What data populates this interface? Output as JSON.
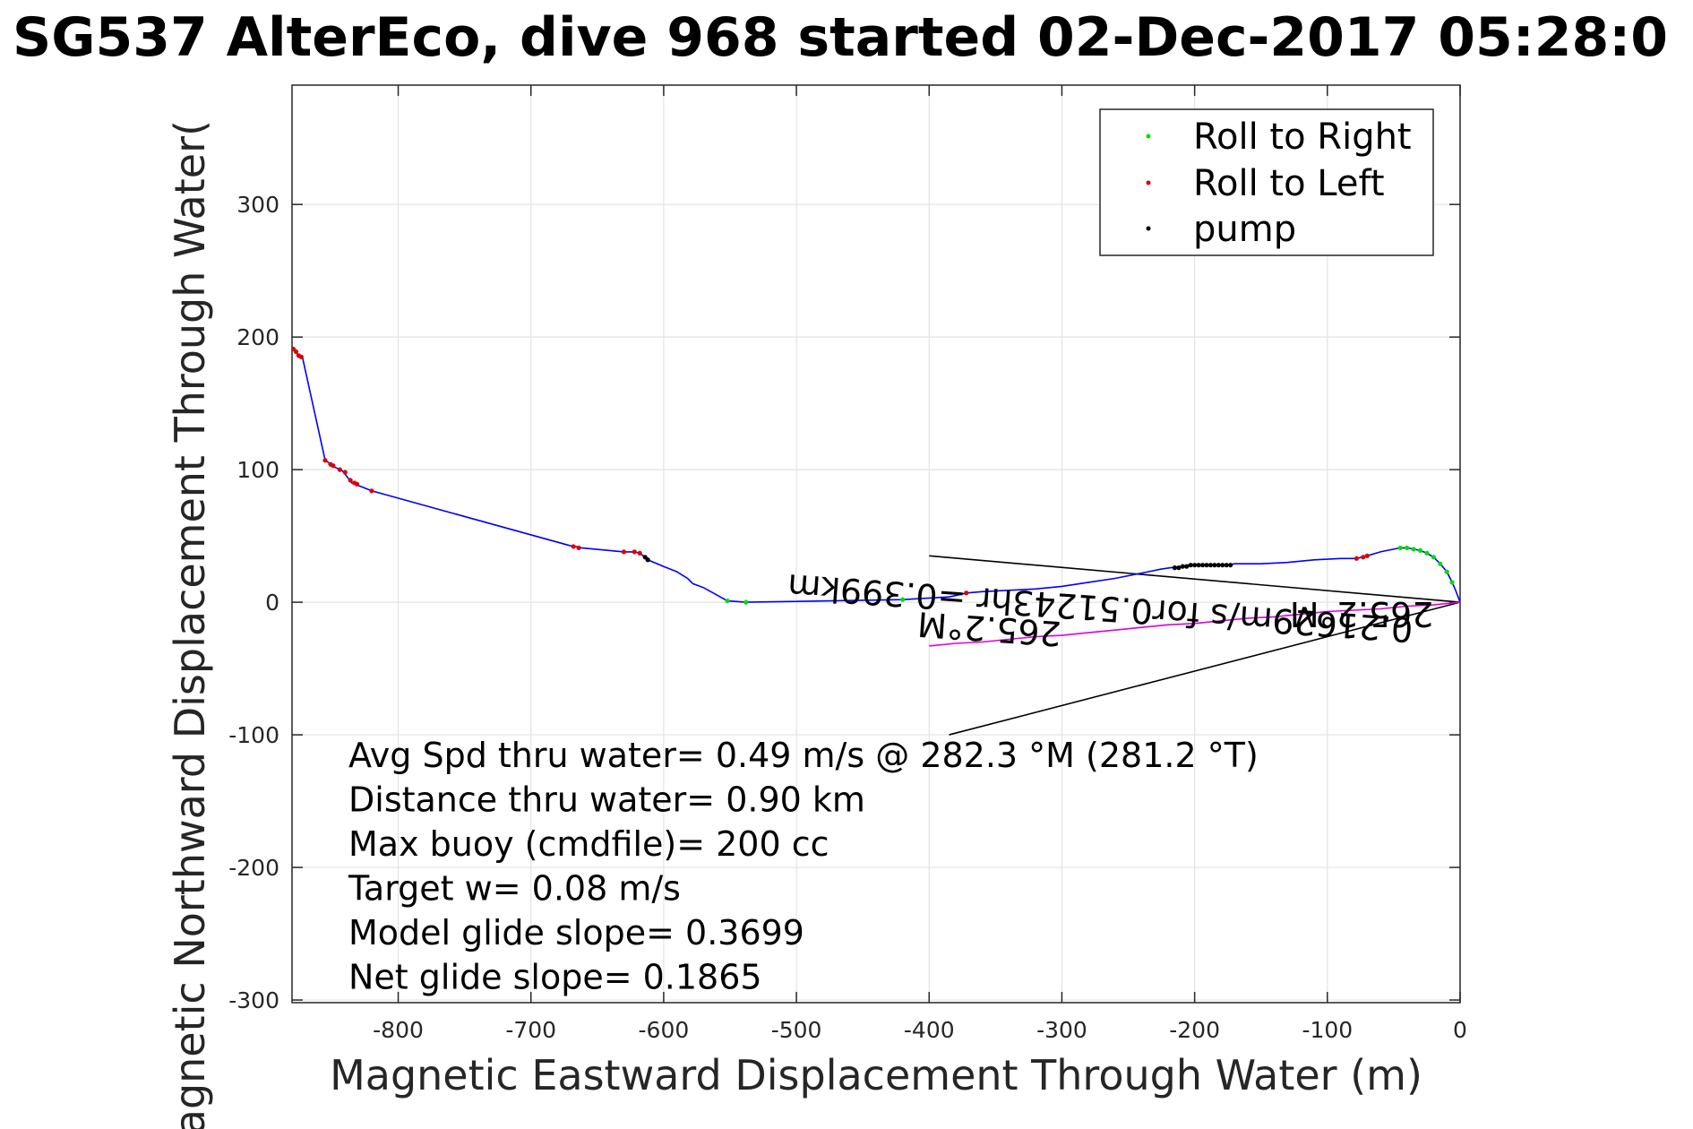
{
  "title": "SG537 AlterEco, dive 968 started 02-Dec-2017 05:28:0",
  "chart_data": {
    "type": "line",
    "xlabel": "Magnetic Eastward Displacement Through Water (m)",
    "ylabel": "Magnetic Northward Displacement Through Water(",
    "xlim": [
      -880,
      0
    ],
    "ylim": [
      -302,
      390
    ],
    "xticks": [
      -800,
      -700,
      -600,
      -500,
      -400,
      -300,
      -200,
      -100,
      0
    ],
    "yticks": [
      -300,
      -200,
      -100,
      0,
      100,
      200,
      300
    ],
    "xtick_labels": [
      "-800",
      "-700",
      "-600",
      "-500",
      "-400",
      "-300",
      "-200",
      "-100",
      "0"
    ],
    "ytick_labels": [
      "-300",
      "-200",
      "-100",
      "0",
      "100",
      "200",
      "300"
    ],
    "grid": true,
    "legend_position": "top-right",
    "legend": [
      {
        "label": "Roll to Right",
        "color": "#00dd00"
      },
      {
        "label": "Roll to Left",
        "color": "#dd0000"
      },
      {
        "label": "pump",
        "color": "#000000"
      }
    ],
    "series": [
      {
        "style": "track",
        "color": "#0000ff",
        "x": [
          -880,
          -878,
          -876,
          -874,
          -872,
          -855,
          -852,
          -850,
          -846,
          -842,
          -838,
          -835,
          -832,
          -830,
          -820,
          -668,
          -665,
          -662,
          -630,
          -622,
          -618,
          -614,
          -612,
          -600,
          -590,
          -582,
          -578,
          -570,
          -552,
          -538,
          -420,
          -385,
          -380,
          -372,
          -360,
          -340,
          -320,
          -300,
          -280,
          -260,
          -240,
          -225,
          -218,
          -210,
          -205,
          -200,
          -195,
          -190,
          -185,
          -180,
          -175,
          -170,
          -150,
          -130,
          -110,
          -90,
          -78,
          -70,
          -60,
          -50,
          -45,
          -40,
          -35,
          -30,
          -25,
          -20,
          -15,
          -10,
          -6,
          -3,
          0
        ],
        "y": [
          192,
          190,
          187,
          185,
          184,
          107,
          105,
          103,
          101,
          99,
          94,
          90,
          89,
          88,
          84,
          42,
          42,
          41,
          38,
          38,
          37,
          34,
          32,
          27,
          23,
          18,
          14,
          11,
          1,
          0,
          2,
          4,
          5,
          7,
          8,
          9,
          10,
          12,
          15,
          18,
          22,
          25,
          26,
          27,
          28,
          28,
          28,
          28,
          28,
          28,
          28,
          29,
          29,
          30,
          32,
          33,
          33,
          35,
          38,
          40,
          41,
          41,
          40,
          39,
          37,
          34,
          29,
          23,
          15,
          8,
          0
        ]
      },
      {
        "style": "current",
        "color": "#dd00dd",
        "x": [
          -400,
          -380,
          -360,
          -340,
          -320,
          -300,
          -280,
          -260,
          -240,
          -220,
          -200,
          -180,
          -160,
          -140,
          -120,
          -100,
          -80,
          -60,
          -40,
          -20,
          0
        ],
        "y": [
          -33,
          -31,
          -30,
          -28,
          -26,
          -25,
          -23,
          -21,
          -19,
          -17,
          -16,
          -14,
          -12,
          -11,
          -9,
          -7,
          -6,
          -5,
          -3,
          -2,
          0
        ]
      },
      {
        "style": "roll_right",
        "color": "#00dd00",
        "x": [
          -552,
          -538,
          -420,
          -45,
          -40,
          -35,
          -30,
          -25,
          -20,
          -15,
          -10,
          -6
        ],
        "y": [
          1,
          0,
          2,
          41,
          41,
          40,
          39,
          37,
          34,
          29,
          23,
          15
        ]
      },
      {
        "style": "roll_left",
        "color": "#dd0000",
        "x": [
          -879,
          -877,
          -875,
          -873,
          -855,
          -851,
          -849,
          -844,
          -840,
          -836,
          -833,
          -831,
          -820,
          -668,
          -664,
          -630,
          -622,
          -618,
          -372,
          -78,
          -73,
          -70
        ],
        "y": [
          191,
          189,
          186,
          185,
          107,
          104,
          103,
          100,
          98,
          92,
          90,
          89,
          84,
          42,
          41,
          38,
          38,
          37,
          7,
          33,
          34,
          35
        ]
      },
      {
        "style": "pump",
        "color": "#000000",
        "x": [
          -614,
          -612,
          -215,
          -212,
          -209,
          -206,
          -203,
          -200,
          -197,
          -194,
          -191,
          -188,
          -185,
          -182,
          -179,
          -176,
          -173
        ],
        "y": [
          34,
          32,
          26,
          26,
          27,
          27,
          28,
          28,
          28,
          28,
          28,
          28,
          28,
          28,
          28,
          28,
          28
        ]
      }
    ],
    "vector_lines": [
      {
        "x": [
          -400,
          0
        ],
        "y": [
          35,
          0
        ],
        "color": "#000000"
      },
      {
        "x": [
          -385,
          0
        ],
        "y": [
          -100,
          0
        ],
        "color": "#000000"
      }
    ],
    "rotated_labels": [
      {
        "text": "265.2°M",
        "x": -20,
        "y": 0,
        "rotation": 180
      },
      {
        "text": "0.21629m/s for0.51243hr =0.399km",
        "x": -35,
        "y": -12,
        "rotation": 184
      },
      {
        "text": "265.2°M",
        "x": -300,
        "y": -15,
        "rotation": 184
      }
    ],
    "annotations": [
      "Avg Spd thru water=  0.49 m/s @ 282.3 °M (281.2 °T)",
      "Distance thru water=  0.90 km",
      "Max buoy (cmdfile)= 200 cc",
      "Target w= 0.08 m/s",
      "Model glide slope= 0.3699",
      "Net glide slope= 0.1865"
    ]
  }
}
